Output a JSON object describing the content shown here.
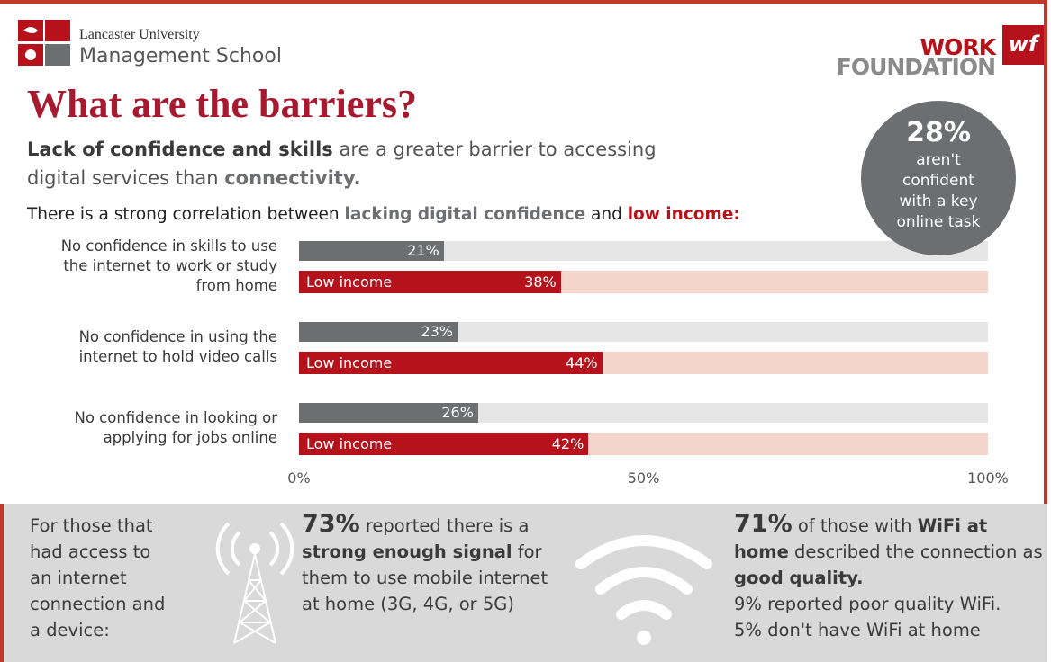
{
  "header": {
    "university": "Lancaster University",
    "school": "Management School",
    "partner_top": "WORK",
    "partner_bottom": "FOUNDATION",
    "partner_badge": "wf"
  },
  "title": "What are the barriers?",
  "subtitle": [
    "Lack of confidence and skills",
    " are a greater barrier to accessing digital services than ",
    "connectivity."
  ],
  "correlation": [
    "There is a strong correlation between ",
    "lacking digital confidence",
    " and ",
    "low income:"
  ],
  "callout": {
    "figure": "28%",
    "text": "aren't confident with a key online task"
  },
  "chart_data": {
    "type": "bar",
    "orientation": "horizontal",
    "categories": [
      "No confidence in skills to use the internet to work or study from home",
      "No confidence in using the internet to hold video calls",
      "No confidence in looking or applying for jobs online"
    ],
    "series": [
      {
        "color": "#6d6e70",
        "track_color": "#e6e6e6",
        "values": [
          21,
          23,
          26
        ],
        "value_labels": [
          "21%",
          "23%",
          "26%"
        ]
      },
      {
        "name": "Low income",
        "color": "#b5121b",
        "track_color": "#f4d5cb",
        "values": [
          38,
          44,
          42
        ],
        "value_labels": [
          "38%",
          "44%",
          "42%"
        ]
      }
    ],
    "xlim": [
      0,
      100
    ],
    "xticks": [
      {
        "value": 0,
        "label": "0%"
      },
      {
        "value": 50,
        "label": "50%"
      },
      {
        "value": 100,
        "label": "100%"
      }
    ]
  },
  "footer": {
    "intro": "For those that had access to an internet connection and a device:",
    "signal": [
      "73%",
      " reported there is a ",
      "strong enough signal",
      " for them to use mobile internet at home (3G, 4G, or 5G)"
    ],
    "wifi": [
      "71%",
      " of those with ",
      "WiFi at home",
      " described the connection as ",
      "good quality."
    ],
    "wifi_poor": "9% reported poor quality WiFi.",
    "wifi_none": "5% don't have WiFi at home"
  }
}
